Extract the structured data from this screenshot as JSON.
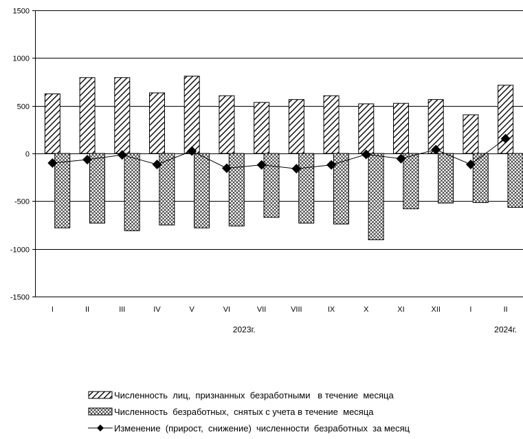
{
  "chart_data": {
    "type": "bar",
    "categories": [
      "I",
      "II",
      "III",
      "IV",
      "V",
      "VI",
      "VII",
      "VIII",
      "IX",
      "X",
      "XI",
      "XII",
      "I",
      "II"
    ],
    "year_labels": [
      {
        "text": "2023г.",
        "category_index": 5.5
      },
      {
        "text": "2024г.",
        "category_index": 13
      }
    ],
    "ylim": [
      -1500,
      1500
    ],
    "yticks": [
      -1500,
      -1000,
      -500,
      0,
      500,
      1000,
      1500
    ],
    "ytick_labels": [
      "-1500",
      "-1000",
      "-500",
      "0",
      "500",
      "1000",
      "1500"
    ],
    "grid": true,
    "legend_placement": "bottom",
    "series": [
      {
        "name": "Численность  лиц,  признанных  безработными   в течение  месяца",
        "kind": "bar",
        "pattern": "diagonal-hatch",
        "values": [
          625,
          795,
          795,
          635,
          810,
          605,
          535,
          565,
          605,
          520,
          525,
          565,
          405,
          715
        ]
      },
      {
        "name": "Численность  безработных,  снятых с учета в течение  месяца",
        "kind": "bar",
        "pattern": "cross-hatch",
        "values": [
          -780,
          -730,
          -810,
          -750,
          -780,
          -760,
          -670,
          -730,
          -740,
          -905,
          -580,
          -520,
          -515,
          -565
        ]
      },
      {
        "name": "Изменение  (прирост,  снижение)  численности  безработных  за месяц",
        "kind": "line",
        "marker": "diamond",
        "values": [
          -100,
          -65,
          -15,
          -115,
          25,
          -155,
          -120,
          -160,
          -120,
          -10,
          -55,
          40,
          -115,
          155
        ]
      }
    ]
  }
}
